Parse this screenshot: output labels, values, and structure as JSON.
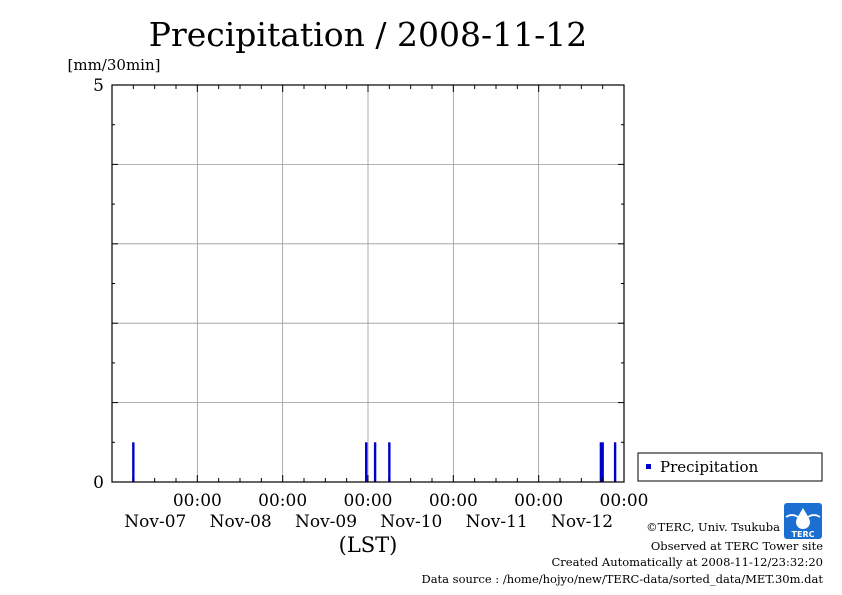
{
  "chart_data": {
    "type": "bar",
    "title": "Precipitation / 2008-11-12",
    "ylabel": "[mm/30min]",
    "xlabel": "(LST)",
    "ylim": [
      0,
      5
    ],
    "y_ticks": [
      {
        "value": 0,
        "label": "0"
      },
      {
        "value": 5,
        "label": "5"
      }
    ],
    "y_grid": [
      1,
      2,
      3,
      4
    ],
    "x_range_hours": [
      0,
      144
    ],
    "x_ticks": [
      {
        "hour": 24,
        "time": "00:00",
        "date": "Nov-07"
      },
      {
        "hour": 48,
        "time": "00:00",
        "date": "Nov-08"
      },
      {
        "hour": 72,
        "time": "00:00",
        "date": "Nov-09"
      },
      {
        "hour": 96,
        "time": "00:00",
        "date": "Nov-10"
      },
      {
        "hour": 120,
        "time": "00:00",
        "date": "Nov-11"
      },
      {
        "hour": 144,
        "time": "00:00",
        "date": "Nov-12"
      }
    ],
    "grid": true,
    "legend_position": "right",
    "series": [
      {
        "name": "Precipitation",
        "color": "#0000cc",
        "points": [
          {
            "hour": 6.0,
            "value": 0.5
          },
          {
            "hour": 71.5,
            "value": 0.5
          },
          {
            "hour": 74.0,
            "value": 0.5
          },
          {
            "hour": 78.0,
            "value": 0.5
          },
          {
            "hour": 137.5,
            "value": 0.5
          },
          {
            "hour": 138.0,
            "value": 0.5
          },
          {
            "hour": 141.5,
            "value": 0.5
          }
        ]
      }
    ]
  },
  "footer": {
    "copyright": "©TERC, Univ. Tsukuba",
    "observed": "Observed at TERC Tower site",
    "created": "Created Automatically at 2008-11-12/23:32:20",
    "source": "Data source : /home/hojyo/new/TERC-data/sorted_data/MET.30m.dat"
  },
  "logo": {
    "text": "TERC",
    "color": "#1a6fd0"
  }
}
